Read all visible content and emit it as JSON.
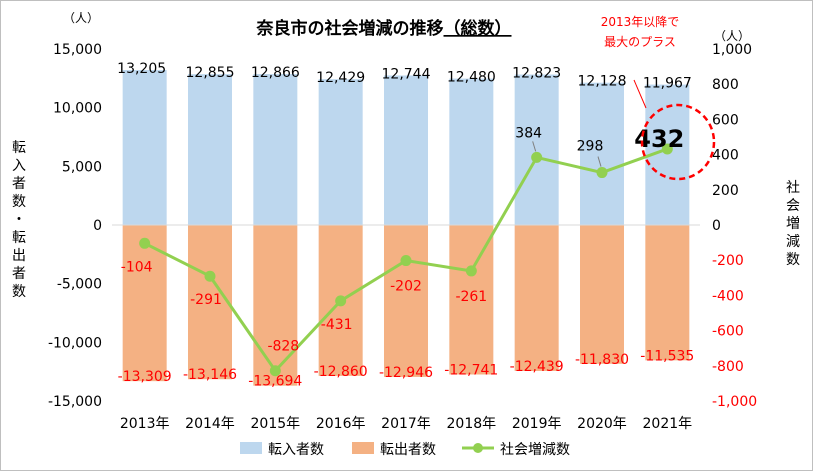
{
  "chart_data": {
    "type": "bar",
    "title": "奈良市の社会増減の推移",
    "title_suffix": "（総数）",
    "categories": [
      "2013年",
      "2014年",
      "2015年",
      "2016年",
      "2017年",
      "2018年",
      "2019年",
      "2020年",
      "2021年"
    ],
    "series": [
      {
        "name": "転入者数",
        "type": "bar",
        "axis": "left",
        "color": "#BDD7EE",
        "values": [
          13205,
          12855,
          12866,
          12429,
          12744,
          12480,
          12823,
          12128,
          11967
        ],
        "labels": [
          "13,205",
          "12,855",
          "12,866",
          "12,429",
          "12,744",
          "12,480",
          "12,823",
          "12,128",
          "11,967"
        ]
      },
      {
        "name": "転出者数",
        "type": "bar",
        "axis": "left",
        "color": "#F4B183",
        "values": [
          -13309,
          -13146,
          -13694,
          -12860,
          -12946,
          -12741,
          -12439,
          -11830,
          -11535
        ],
        "labels": [
          "-13,309",
          "-13,146",
          "-13,694",
          "-12,860",
          "-12,946",
          "-12,741",
          "-12,439",
          "-11,830",
          "-11,535"
        ]
      },
      {
        "name": "社会増減数",
        "type": "line",
        "axis": "right",
        "color": "#92D050",
        "values": [
          -104,
          -291,
          -828,
          -431,
          -202,
          -261,
          384,
          298,
          432
        ],
        "labels": [
          "-104",
          "-291",
          "-828",
          "-431",
          "-202",
          "-261",
          "384",
          "298",
          "432"
        ]
      }
    ],
    "y_left": {
      "label": "転入者数・転出者数",
      "unit": "（人）",
      "range": [
        -15000,
        15000
      ],
      "ticks": [
        "15,000",
        "10,000",
        "5,000",
        "0",
        "-5,000",
        "-10,000",
        "-15,000"
      ]
    },
    "y_right": {
      "label": "社会増減数",
      "unit": "（人）",
      "range": [
        -1000,
        1000
      ],
      "ticks": [
        "1,000",
        "800",
        "600",
        "400",
        "200",
        "0",
        "-200",
        "-400",
        "-600",
        "-800",
        "-1,000"
      ]
    },
    "legend_position": "bottom",
    "annotation": {
      "line1": "2013年以降で",
      "line2": "最大のプラス",
      "color": "#FF0000"
    },
    "colors": {
      "negative_text": "#FF0000",
      "highlight_circle": "#FF0000",
      "text": "#000000"
    },
    "grid": false
  }
}
